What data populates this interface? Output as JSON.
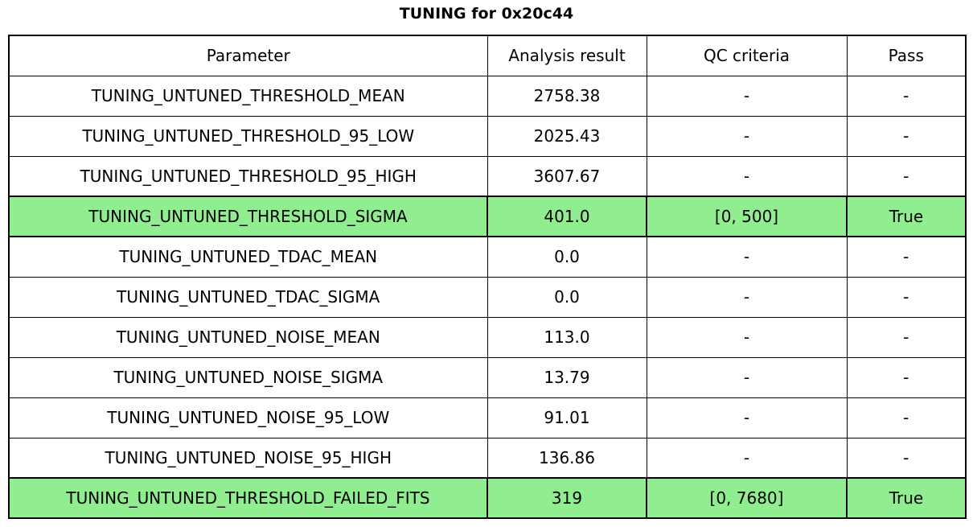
{
  "title": "TUNING for 0x20c44",
  "chart_data": {
    "type": "table",
    "title": "TUNING for 0x20c44",
    "columns": [
      "Parameter",
      "Analysis result",
      "QC criteria",
      "Pass"
    ],
    "rows": [
      {
        "parameter": "TUNING_UNTUNED_THRESHOLD_MEAN",
        "analysis_result": "2758.38",
        "qc_criteria": "-",
        "pass": "-",
        "highlight": false
      },
      {
        "parameter": "TUNING_UNTUNED_THRESHOLD_95_LOW",
        "analysis_result": "2025.43",
        "qc_criteria": "-",
        "pass": "-",
        "highlight": false
      },
      {
        "parameter": "TUNING_UNTUNED_THRESHOLD_95_HIGH",
        "analysis_result": "3607.67",
        "qc_criteria": "-",
        "pass": "-",
        "highlight": false
      },
      {
        "parameter": "TUNING_UNTUNED_THRESHOLD_SIGMA",
        "analysis_result": "401.0",
        "qc_criteria": "[0, 500]",
        "pass": "True",
        "highlight": true
      },
      {
        "parameter": "TUNING_UNTUNED_TDAC_MEAN",
        "analysis_result": "0.0",
        "qc_criteria": "-",
        "pass": "-",
        "highlight": false
      },
      {
        "parameter": "TUNING_UNTUNED_TDAC_SIGMA",
        "analysis_result": "0.0",
        "qc_criteria": "-",
        "pass": "-",
        "highlight": false
      },
      {
        "parameter": "TUNING_UNTUNED_NOISE_MEAN",
        "analysis_result": "113.0",
        "qc_criteria": "-",
        "pass": "-",
        "highlight": false
      },
      {
        "parameter": "TUNING_UNTUNED_NOISE_SIGMA",
        "analysis_result": "13.79",
        "qc_criteria": "-",
        "pass": "-",
        "highlight": false
      },
      {
        "parameter": "TUNING_UNTUNED_NOISE_95_LOW",
        "analysis_result": "91.01",
        "qc_criteria": "-",
        "pass": "-",
        "highlight": false
      },
      {
        "parameter": "TUNING_UNTUNED_NOISE_95_HIGH",
        "analysis_result": "136.86",
        "qc_criteria": "-",
        "pass": "-",
        "highlight": false
      },
      {
        "parameter": "TUNING_UNTUNED_THRESHOLD_FAILED_FITS",
        "analysis_result": "319",
        "qc_criteria": "[0, 7680]",
        "pass": "True",
        "highlight": true
      }
    ],
    "legend": "none",
    "grid": "full-cell-borders"
  },
  "colors": {
    "highlight_green": "#90ee90",
    "border": "#000000",
    "background": "#ffffff",
    "text": "#000000"
  }
}
